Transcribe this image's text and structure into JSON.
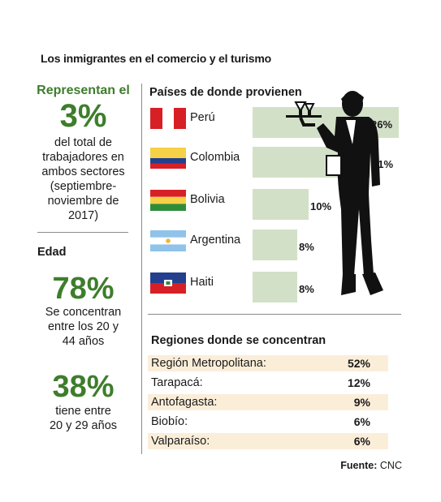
{
  "title": "Los inmigrantes en el comercio y el turismo",
  "left": {
    "represent_label": "Representan el",
    "represent_value": "3%",
    "represent_desc_lines": [
      "del total de",
      "trabajadores en",
      "ambos sectores",
      "(septiembre-",
      "noviembre de",
      "2017)"
    ],
    "edad_title": "Edad",
    "stat1_value": "78%",
    "stat1_desc_lines": [
      "Se concentran",
      "entre los 20 y",
      "44 años"
    ],
    "stat2_value": "38%",
    "stat2_desc_lines": [
      "tiene entre",
      "20 y 29 años"
    ]
  },
  "countries_title": "Países de donde provienen",
  "regions_title": "Regiones donde se concentran",
  "source_label": "Fuente:",
  "source_value": "CNC",
  "colors": {
    "accent_green": "#3e7d2c",
    "bar_fill": "#d2e0c8",
    "row_shade": "#fbeed9",
    "divider": "#8a8a8a"
  },
  "flag_icons": [
    "flag-peru-icon",
    "flag-colombia-icon",
    "flag-bolivia-icon",
    "flag-argentina-icon",
    "flag-haiti-icon"
  ],
  "decoration_icon": "waiter-silhouette-icon",
  "chart_data": [
    {
      "type": "bar",
      "orientation": "horizontal",
      "title": "Países de donde provienen",
      "categories": [
        "Perú",
        "Colombia",
        "Bolivia",
        "Argentina",
        "Haiti"
      ],
      "values": [
        26,
        21,
        10,
        8,
        8
      ],
      "value_labels": [
        "26%",
        "21%",
        "10%",
        "8%",
        "8%"
      ],
      "unit": "%"
    },
    {
      "type": "table",
      "title": "Regiones donde se concentran",
      "categories": [
        "Región Metropolitana:",
        "Tarapacá:",
        "Antofagasta:",
        "Biobío:",
        "Valparaíso:"
      ],
      "values": [
        52,
        12,
        9,
        6,
        6
      ],
      "value_labels": [
        "52%",
        "12%",
        "9%",
        "6%",
        "6%"
      ],
      "unit": "%"
    }
  ]
}
